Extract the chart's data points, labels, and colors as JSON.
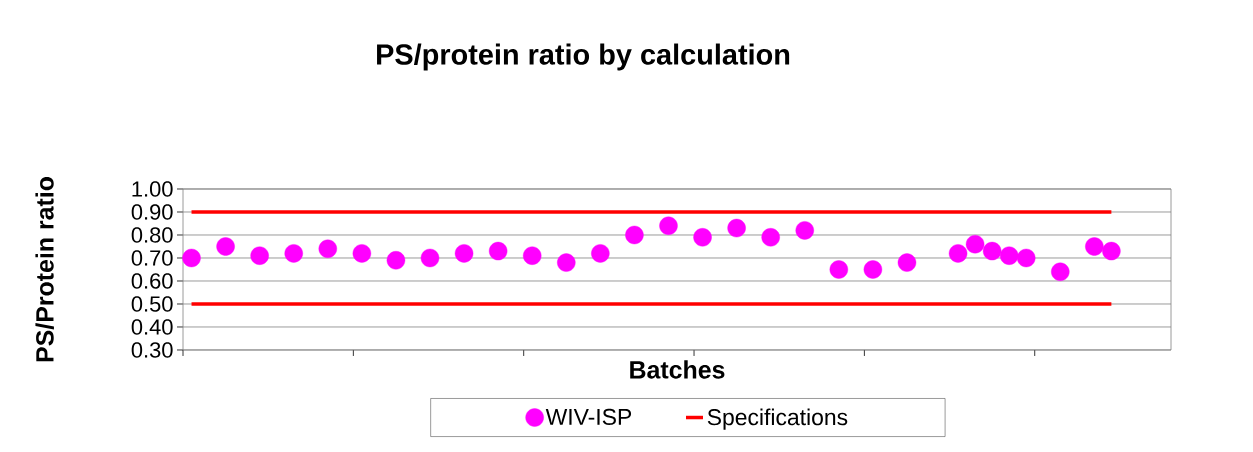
{
  "chart_data": {
    "type": "scatter",
    "title": "PS/protein ratio by calculation",
    "xlabel": "Batches",
    "ylabel": "PS/Protein ratio",
    "categories": [
      null,
      null,
      null,
      null,
      null,
      null,
      null,
      null,
      null,
      null,
      null,
      null,
      null,
      null,
      null,
      null,
      null,
      null,
      null,
      null,
      null,
      null,
      null,
      null,
      null,
      null,
      null,
      null,
      null,
      null,
      null,
      null,
      null,
      null,
      null,
      null,
      null,
      null,
      null,
      null,
      null,
      null,
      null,
      null,
      null,
      null,
      null,
      null,
      null,
      null,
      null,
      null,
      null,
      null,
      null,
      null,
      null,
      null
    ],
    "ylim": [
      0.3,
      1.0
    ],
    "yticks": [
      {
        "value": 0.3,
        "label": "0.30"
      },
      {
        "value": 0.4,
        "label": "0.40"
      },
      {
        "value": 0.5,
        "label": "0.50"
      },
      {
        "value": 0.6,
        "label": "0.60"
      },
      {
        "value": 0.7,
        "label": "0.70"
      },
      {
        "value": 0.8,
        "label": "0.80"
      },
      {
        "value": 0.9,
        "label": "0.90"
      },
      {
        "value": 1.0,
        "label": "1.00"
      }
    ],
    "tick_labels": "y",
    "grid": "y",
    "legend": "bottom",
    "series": [
      {
        "name": "WIV-ISP",
        "marker": "circle",
        "color": "#ff00ff",
        "values": [
          0.7,
          null,
          0.75,
          null,
          0.71,
          null,
          0.72,
          null,
          0.74,
          null,
          0.72,
          null,
          0.69,
          null,
          0.7,
          null,
          0.72,
          null,
          0.73,
          null,
          0.71,
          null,
          0.68,
          null,
          0.72,
          null,
          0.8,
          null,
          0.84,
          null,
          0.79,
          null,
          0.83,
          null,
          0.79,
          null,
          0.82,
          null,
          0.65,
          null,
          0.65,
          null,
          0.68,
          null,
          null,
          0.72,
          0.76,
          0.73,
          0.71,
          0.7,
          null,
          0.64,
          null,
          0.75,
          0.73,
          null,
          null,
          null
        ]
      },
      {
        "name": "Specifications",
        "type": "line",
        "marker": "none",
        "color": "#ff0000",
        "values": [
          0.9,
          0.9,
          0.9,
          0.9,
          0.9,
          0.9,
          0.9,
          0.9,
          0.9,
          0.9,
          0.9,
          0.9,
          0.9,
          0.9,
          0.9,
          0.9,
          0.9,
          0.9,
          0.9,
          0.9,
          0.9,
          0.9,
          0.9,
          0.9,
          0.9,
          0.9,
          0.9,
          0.9,
          0.9,
          0.9,
          0.9,
          0.9,
          0.9,
          0.9,
          0.9,
          0.9,
          0.9,
          0.9,
          0.9,
          0.9,
          0.9,
          0.9,
          0.9,
          0.9,
          0.9,
          0.9,
          0.9,
          0.9,
          0.9,
          0.9,
          0.9,
          0.9,
          0.9,
          0.9,
          0.9,
          null,
          null,
          null
        ]
      },
      {
        "type": "line",
        "marker": "none",
        "color": "#ff0000",
        "values": [
          0.5,
          0.5,
          0.5,
          0.5,
          0.5,
          0.5,
          0.5,
          0.5,
          0.5,
          0.5,
          0.5,
          0.5,
          0.5,
          0.5,
          0.5,
          0.5,
          0.5,
          0.5,
          0.5,
          0.5,
          0.5,
          0.5,
          0.5,
          0.5,
          0.5,
          0.5,
          0.5,
          0.5,
          0.5,
          0.5,
          0.5,
          0.5,
          0.5,
          0.5,
          0.5,
          0.5,
          0.5,
          0.5,
          0.5,
          0.5,
          0.5,
          0.5,
          0.5,
          0.5,
          0.5,
          0.5,
          0.5,
          0.5,
          0.5,
          0.5,
          0.5,
          0.5,
          0.5,
          0.5,
          0.5,
          null,
          null,
          null
        ]
      }
    ]
  }
}
